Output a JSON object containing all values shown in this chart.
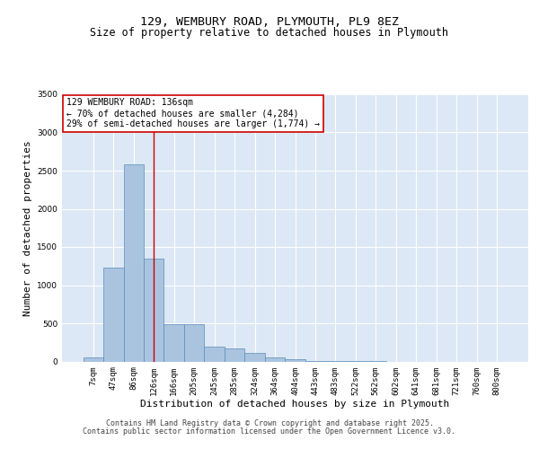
{
  "title_line1": "129, WEMBURY ROAD, PLYMOUTH, PL9 8EZ",
  "title_line2": "Size of property relative to detached houses in Plymouth",
  "xlabel": "Distribution of detached houses by size in Plymouth",
  "ylabel": "Number of detached properties",
  "categories": [
    "7sqm",
    "47sqm",
    "86sqm",
    "126sqm",
    "166sqm",
    "205sqm",
    "245sqm",
    "285sqm",
    "324sqm",
    "364sqm",
    "404sqm",
    "443sqm",
    "483sqm",
    "522sqm",
    "562sqm",
    "602sqm",
    "641sqm",
    "681sqm",
    "721sqm",
    "760sqm",
    "800sqm"
  ],
  "values": [
    50,
    1230,
    2580,
    1350,
    490,
    490,
    190,
    165,
    110,
    50,
    30,
    10,
    5,
    2,
    1,
    0,
    0,
    0,
    0,
    0,
    0
  ],
  "bar_color": "#aac4e0",
  "bar_edge_color": "#5b8db8",
  "background_color": "#dce8f5",
  "grid_color": "#ffffff",
  "annotation_text": "129 WEMBURY ROAD: 136sqm\n← 70% of detached houses are smaller (4,284)\n29% of semi-detached houses are larger (1,774) →",
  "vline_position": 3.0,
  "annotation_box_color": "#ffffff",
  "annotation_box_edge": "#cc0000",
  "vline_color": "#cc0000",
  "ylim": [
    0,
    3500
  ],
  "yticks": [
    0,
    500,
    1000,
    1500,
    2000,
    2500,
    3000,
    3500
  ],
  "footer_line1": "Contains HM Land Registry data © Crown copyright and database right 2025.",
  "footer_line2": "Contains public sector information licensed under the Open Government Licence v3.0.",
  "title_fontsize": 9.5,
  "subtitle_fontsize": 8.5,
  "axis_label_fontsize": 8,
  "tick_fontsize": 6.5,
  "annotation_fontsize": 7,
  "footer_fontsize": 6
}
